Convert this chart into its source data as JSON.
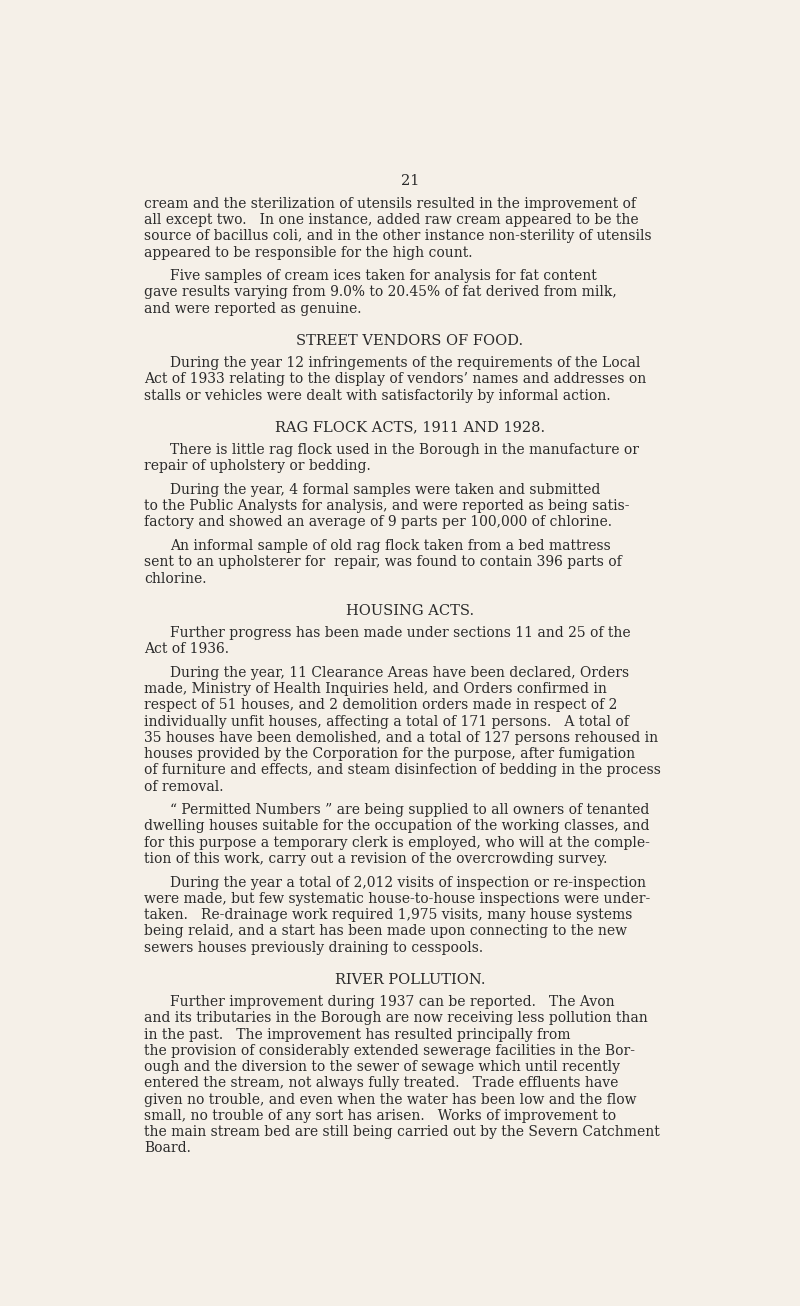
{
  "background_color": "#f5f0e8",
  "text_color": "#2a2a2a",
  "page_number": "21",
  "body_fontsize": 10.0,
  "heading_fontsize": 10.5,
  "paragraphs": [
    {
      "type": "body",
      "indent": false,
      "lines": [
        "cream and the sterilization of utensils resulted in the improvement of",
        "all except two.   In one instance, added raw cream appeared to be the",
        "source of bacillus coli, and in the other instance non-sterility of utensils",
        "appeared to be responsible for the high count."
      ]
    },
    {
      "type": "body",
      "indent": true,
      "lines": [
        "Five samples of cream ices taken for analysis for fat content",
        "gave results varying from 9.0% to 20.45% of fat derived from milk,",
        "and were reported as genuine."
      ]
    },
    {
      "type": "heading",
      "lines": [
        "STREET VENDORS OF FOOD."
      ]
    },
    {
      "type": "body",
      "indent": true,
      "lines": [
        "During the year 12 infringements of the requirements of the Local",
        "Act of 1933 relating to the display of vendors’ names and addresses on",
        "stalls or vehicles were dealt with satisfactorily by informal action."
      ]
    },
    {
      "type": "heading",
      "lines": [
        "RAG FLOCK ACTS, 1911 AND 1928."
      ]
    },
    {
      "type": "body",
      "indent": true,
      "lines": [
        "There is little rag flock used in the Borough in the manufacture or",
        "repair of upholstery or bedding."
      ]
    },
    {
      "type": "body",
      "indent": true,
      "lines": [
        "During the year, 4 formal samples were taken and submitted",
        "to the Public Analysts for analysis, and were reported as being satis-",
        "factory and showed an average of 9 parts per 100,000 of chlorine."
      ]
    },
    {
      "type": "body",
      "indent": true,
      "lines": [
        "An informal sample of old rag flock taken from a bed mattress",
        "sent to an upholsterer for  repair, was found to contain 396 parts of",
        "chlorine."
      ]
    },
    {
      "type": "heading",
      "lines": [
        "HOUSING ACTS."
      ]
    },
    {
      "type": "body",
      "indent": true,
      "lines": [
        "Further progress has been made under sections 11 and 25 of the",
        "Act of 1936."
      ]
    },
    {
      "type": "body",
      "indent": true,
      "lines": [
        "During the year, 11 Clearance Areas have been declared, Orders",
        "made, Ministry of Health Inquiries held, and Orders confirmed in",
        "respect of 51 houses, and 2 demolition orders made in respect of 2",
        "individually unfit houses, affecting a total of 171 persons.   A total of",
        "35 houses have been demolished, and a total of 127 persons rehoused in",
        "houses provided by the Corporation for the purpose, after fumigation",
        "of furniture and effects, and steam disinfection of bedding in the process",
        "of removal."
      ]
    },
    {
      "type": "body",
      "indent": true,
      "lines": [
        "“ Permitted Numbers ” are being supplied to all owners of tenanted",
        "dwelling houses suitable for the occupation of the working classes, and",
        "for this purpose a temporary clerk is employed, who will at the comple-",
        "tion of this work, carry out a revision of the overcrowding survey."
      ]
    },
    {
      "type": "body",
      "indent": true,
      "lines": [
        "During the year a total of 2,012 visits of inspection or re-inspection",
        "were made, but few systematic house-to-house inspections were under-",
        "taken.   Re-drainage work required 1,975 visits, many house systems",
        "being relaid, and a start has been made upon connecting to the new",
        "sewers houses previously draining to cesspools."
      ]
    },
    {
      "type": "heading",
      "lines": [
        "RIVER POLLUTION."
      ]
    },
    {
      "type": "body",
      "indent": true,
      "lines": [
        "Further improvement during 1937 can be reported.   The Avon",
        "and its tributaries in the Borough are now receiving less pollution than",
        "in the past.   The improvement has resulted principally from",
        "the provision of considerably extended sewerage facilities in the Bor-",
        "ough and the diversion to the sewer of sewage which until recently",
        "entered the stream, not always fully treated.   Trade effluents have",
        "given no trouble, and even when the water has been low and the flow",
        "small, no trouble of any sort has arisen.   Works of improvement to",
        "the main stream bed are still being carried out by the Severn Catchment",
        "Board."
      ]
    }
  ]
}
